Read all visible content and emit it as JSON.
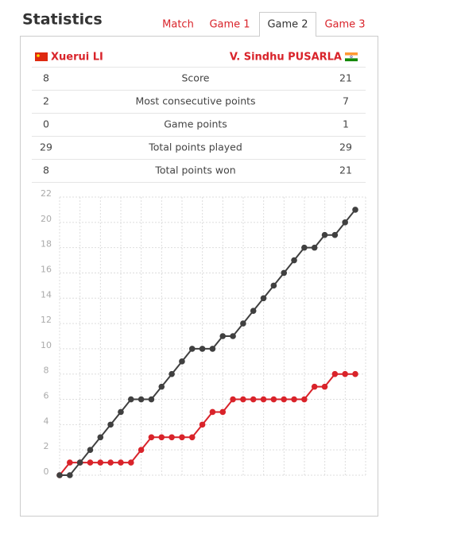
{
  "header": {
    "title": "Statistics"
  },
  "tabs": [
    "Match",
    "Game 1",
    "Game 2",
    "Game 3"
  ],
  "active_tab": 2,
  "players": {
    "left": "Xuerui LI",
    "right": "V. Sindhu PUSARLA"
  },
  "table": {
    "rows": [
      [
        8,
        "Score",
        21
      ],
      [
        2,
        "Most consecutive points",
        7
      ],
      [
        0,
        "Game points",
        1
      ],
      [
        29,
        "Total points played",
        29
      ],
      [
        8,
        "Total points won",
        21
      ]
    ]
  },
  "chart_data": {
    "type": "line",
    "series": [
      {
        "color": "#d9232a",
        "values": [
          0,
          1,
          1,
          1,
          1,
          1,
          1,
          1,
          2,
          3,
          3,
          3,
          3,
          3,
          4,
          5,
          5,
          6,
          6,
          6,
          6,
          6,
          6,
          6,
          6,
          7,
          7,
          8,
          8,
          8
        ]
      },
      {
        "color": "#404040",
        "values": [
          0,
          0,
          1,
          2,
          3,
          4,
          5,
          6,
          6,
          6,
          7,
          8,
          9,
          10,
          10,
          10,
          11,
          11,
          12,
          13,
          14,
          15,
          16,
          17,
          18,
          18,
          19,
          19,
          20,
          21
        ]
      }
    ],
    "ylim": [
      0,
      22
    ],
    "yticks": [
      0,
      2,
      4,
      6,
      8,
      10,
      12,
      14,
      16,
      18,
      20,
      22
    ],
    "grid": true
  }
}
